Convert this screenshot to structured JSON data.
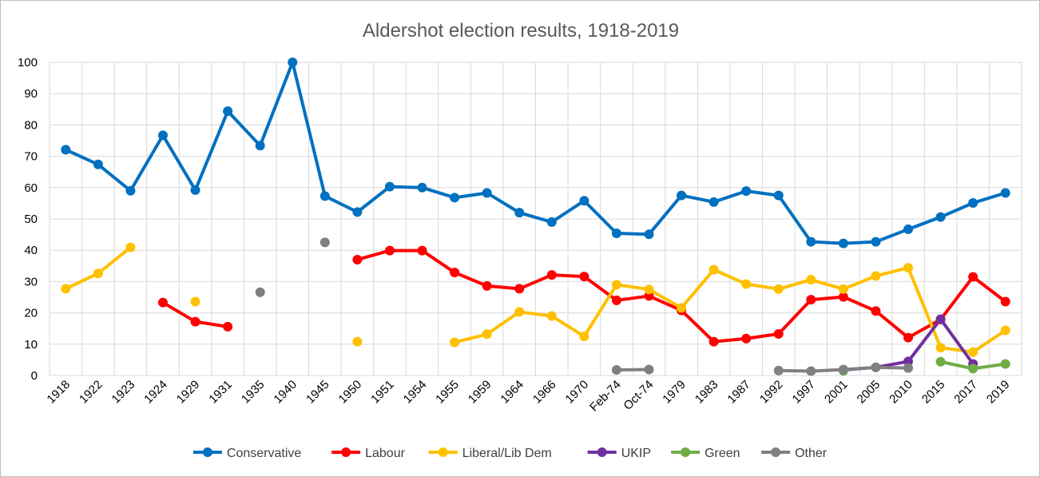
{
  "chart_data": {
    "type": "line",
    "title": "Aldershot election results, 1918-2019",
    "xlabel": "",
    "ylabel": "",
    "ylim": [
      0,
      100
    ],
    "yticks": [
      0,
      10,
      20,
      30,
      40,
      50,
      60,
      70,
      80,
      90,
      100
    ],
    "grid": true,
    "legend": "bottom",
    "categories": [
      "1918",
      "1922",
      "1923",
      "1924",
      "1929",
      "1931",
      "1935",
      "1940",
      "1945",
      "1950",
      "1951",
      "1954",
      "1955",
      "1959",
      "1964",
      "1966",
      "1970",
      "Feb-74",
      "Oct-74",
      "1979",
      "1983",
      "1987",
      "1992",
      "1997",
      "2001",
      "2005",
      "2010",
      "2015",
      "2017",
      "2019"
    ],
    "series": [
      {
        "name": "Conservative",
        "color": "#0070C0",
        "values": [
          72.1,
          67.4,
          59.0,
          76.7,
          59.2,
          84.4,
          73.4,
          100,
          57.3,
          52.2,
          60.3,
          60.0,
          56.8,
          58.3,
          52.0,
          49.0,
          55.8,
          45.4,
          45.1,
          57.5,
          55.4,
          58.9,
          57.5,
          42.7,
          42.2,
          42.7,
          46.7,
          50.6,
          55.1,
          58.3
        ]
      },
      {
        "name": "Labour",
        "color": "#FF0000",
        "values": [
          null,
          null,
          null,
          23.3,
          17.2,
          15.6,
          null,
          null,
          null,
          37.0,
          39.9,
          39.9,
          32.9,
          28.6,
          27.7,
          32.1,
          31.6,
          24.0,
          25.4,
          20.8,
          10.8,
          11.8,
          13.3,
          24.2,
          25.1,
          20.6,
          12.1,
          17.9,
          31.5,
          23.6
        ]
      },
      {
        "name": "Liberal/Lib Dem",
        "color": "#FFC000",
        "values": [
          27.7,
          32.6,
          40.9,
          null,
          23.6,
          null,
          null,
          null,
          null,
          10.8,
          null,
          null,
          10.6,
          13.2,
          20.3,
          19.0,
          12.5,
          29.0,
          27.5,
          21.6,
          33.8,
          29.2,
          27.6,
          30.6,
          27.6,
          31.8,
          34.4,
          8.9,
          7.5,
          14.4
        ]
      },
      {
        "name": "UKIP",
        "color": "#7030A0",
        "values": [
          null,
          null,
          null,
          null,
          null,
          null,
          null,
          null,
          null,
          null,
          null,
          null,
          null,
          null,
          null,
          null,
          null,
          null,
          null,
          null,
          null,
          null,
          null,
          null,
          1.8,
          2.6,
          4.5,
          18.0,
          3.7,
          null
        ]
      },
      {
        "name": "Green",
        "color": "#70AD47",
        "values": [
          null,
          null,
          null,
          null,
          null,
          null,
          null,
          null,
          null,
          null,
          null,
          null,
          null,
          null,
          null,
          null,
          null,
          null,
          null,
          null,
          null,
          null,
          null,
          null,
          1.5,
          null,
          null,
          4.4,
          2.2,
          3.7
        ]
      },
      {
        "name": "Other",
        "color": "#808080",
        "values": [
          null,
          null,
          null,
          null,
          null,
          null,
          26.6,
          null,
          42.5,
          null,
          null,
          null,
          null,
          null,
          null,
          null,
          null,
          1.8,
          1.9,
          null,
          null,
          null,
          1.6,
          1.4,
          1.9,
          2.6,
          2.4,
          null,
          null,
          null
        ]
      }
    ]
  }
}
